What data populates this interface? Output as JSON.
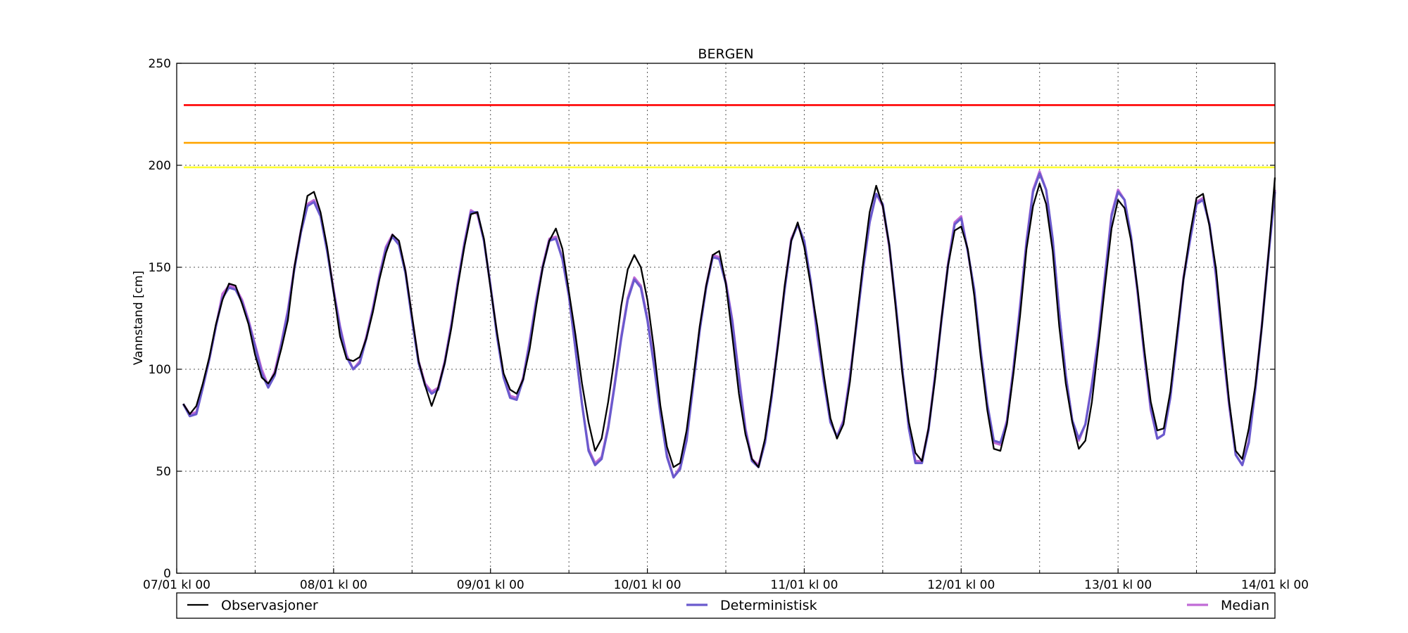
{
  "chart_data": {
    "type": "line",
    "title": "BERGEN",
    "ylabel": "Vannstand [cm]",
    "xlabel": "",
    "ylim": [
      0,
      250
    ],
    "yticks": [
      0,
      50,
      100,
      150,
      200,
      250
    ],
    "xlim": [
      0,
      168
    ],
    "x_unit": "hours since 07/01 kl 00",
    "xticks": [
      {
        "x": 0,
        "label": "07/01 kl 00"
      },
      {
        "x": 24,
        "label": "08/01 kl 00"
      },
      {
        "x": 48,
        "label": "09/01 kl 00"
      },
      {
        "x": 72,
        "label": "10/01 kl 00"
      },
      {
        "x": 96,
        "label": "11/01 kl 00"
      },
      {
        "x": 120,
        "label": "12/01 kl 00"
      },
      {
        "x": 144,
        "label": "13/01 kl 00"
      },
      {
        "x": 168,
        "label": "14/01 kl 00"
      }
    ],
    "minor_grid_x": [
      12,
      36,
      60,
      84,
      108,
      132,
      156
    ],
    "grid": true,
    "legend_placement": "bottom",
    "thresholds": [
      {
        "value": 229.5,
        "color": "#ff0000"
      },
      {
        "value": 211,
        "color": "#ffa500"
      },
      {
        "value": 199,
        "color": "#ffff33"
      }
    ],
    "series": [
      {
        "name": "Median",
        "color": "#c06ad6",
        "x": [
          1,
          2,
          3,
          4,
          5,
          6,
          7,
          8,
          9,
          10,
          11,
          12,
          13,
          14,
          15,
          16,
          17,
          18,
          19,
          20,
          21,
          22,
          23,
          24,
          25,
          26,
          27,
          28,
          29,
          30,
          31,
          32,
          33,
          34,
          35,
          36,
          37,
          38,
          39,
          40,
          41,
          42,
          43,
          44,
          45,
          46,
          47,
          48,
          49,
          50,
          51,
          52,
          53,
          54,
          55,
          56,
          57,
          58,
          59,
          60,
          61,
          62,
          63,
          64,
          65,
          66,
          67,
          68,
          69,
          70,
          71,
          72,
          73,
          74,
          75,
          76,
          77,
          78,
          79,
          80,
          81,
          82,
          83,
          84,
          85,
          86,
          87,
          88,
          89,
          90,
          91,
          92,
          93,
          94,
          95,
          96,
          97,
          98,
          99,
          100,
          101,
          102,
          103,
          104,
          105,
          106,
          107,
          108,
          109,
          110,
          111,
          112,
          113,
          114,
          115,
          116,
          117,
          118,
          119,
          120,
          121,
          122,
          123,
          124,
          125,
          126,
          127,
          128,
          129,
          130,
          131,
          132,
          133,
          134,
          135,
          136,
          137,
          138,
          139,
          140,
          141,
          142,
          143,
          144,
          145,
          146,
          147,
          148,
          149,
          150,
          151,
          152,
          153,
          154,
          155,
          156,
          157,
          158,
          159,
          160,
          161,
          162,
          163,
          164,
          165,
          166,
          167,
          168
        ],
        "values": [
          83,
          78,
          79,
          92,
          105,
          121,
          137,
          141,
          140,
          134,
          124,
          112,
          100,
          92,
          99,
          113,
          129,
          150,
          168,
          181,
          183,
          176,
          159,
          139,
          121,
          107,
          100,
          104,
          116,
          130,
          146,
          160,
          166,
          162,
          148,
          125,
          104,
          93,
          89,
          91,
          104,
          122,
          143,
          162,
          178,
          176,
          163,
          141,
          117,
          97,
          87,
          86,
          96,
          114,
          134,
          151,
          164,
          165,
          154,
          136,
          110,
          83,
          61,
          54,
          57,
          72,
          93,
          116,
          135,
          145,
          141,
          125,
          103,
          79,
          58,
          47,
          52,
          66,
          93,
          120,
          141,
          156,
          155,
          143,
          124,
          97,
          71,
          56,
          53,
          65,
          87,
          114,
          140,
          164,
          171,
          162,
          142,
          116,
          94,
          74,
          67,
          75,
          97,
          123,
          150,
          172,
          186,
          180,
          160,
          131,
          99,
          71,
          55,
          55,
          71,
          97,
          125,
          152,
          172,
          175,
          158,
          138,
          108,
          82,
          64,
          63,
          75,
          101,
          131,
          163,
          188,
          197,
          188,
          163,
          128,
          97,
          75,
          65,
          73,
          93,
          116,
          146,
          176,
          188,
          183,
          164,
          137,
          107,
          80,
          66,
          68,
          87,
          115,
          145,
          164,
          182,
          184,
          171,
          145,
          111,
          82,
          58,
          53,
          65,
          91,
          122,
          156,
          188
        ]
      },
      {
        "name": "Deterministisk",
        "color": "#6a5acd",
        "x": [
          1,
          2,
          3,
          4,
          5,
          6,
          7,
          8,
          9,
          10,
          11,
          12,
          13,
          14,
          15,
          16,
          17,
          18,
          19,
          20,
          21,
          22,
          23,
          24,
          25,
          26,
          27,
          28,
          29,
          30,
          31,
          32,
          33,
          34,
          35,
          36,
          37,
          38,
          39,
          40,
          41,
          42,
          43,
          44,
          45,
          46,
          47,
          48,
          49,
          50,
          51,
          52,
          53,
          54,
          55,
          56,
          57,
          58,
          59,
          60,
          61,
          62,
          63,
          64,
          65,
          66,
          67,
          68,
          69,
          70,
          71,
          72,
          73,
          74,
          75,
          76,
          77,
          78,
          79,
          80,
          81,
          82,
          83,
          84,
          85,
          86,
          87,
          88,
          89,
          90,
          91,
          92,
          93,
          94,
          95,
          96,
          97,
          98,
          99,
          100,
          101,
          102,
          103,
          104,
          105,
          106,
          107,
          108,
          109,
          110,
          111,
          112,
          113,
          114,
          115,
          116,
          117,
          118,
          119,
          120,
          121,
          122,
          123,
          124,
          125,
          126,
          127,
          128,
          129,
          130,
          131,
          132,
          133,
          134,
          135,
          136,
          137,
          138,
          139,
          140,
          141,
          142,
          143,
          144,
          145,
          146,
          147,
          148,
          149,
          150,
          151,
          152,
          153,
          154,
          155,
          156,
          157,
          158,
          159,
          160,
          161,
          162,
          163,
          164,
          165,
          166,
          167,
          168
        ],
        "values": [
          83,
          77,
          78,
          91,
          105,
          121,
          135,
          140,
          139,
          133,
          123,
          111,
          98,
          91,
          97,
          112,
          128,
          149,
          167,
          180,
          182,
          175,
          158,
          138,
          120,
          106,
          100,
          103,
          115,
          129,
          145,
          159,
          165,
          161,
          147,
          124,
          103,
          92,
          88,
          90,
          103,
          121,
          142,
          161,
          177,
          177,
          163,
          141,
          116,
          96,
          86,
          85,
          95,
          113,
          133,
          150,
          163,
          164,
          154,
          136,
          110,
          83,
          60,
          53,
          56,
          71,
          92,
          115,
          134,
          144,
          140,
          124,
          102,
          78,
          57,
          47,
          51,
          65,
          92,
          119,
          140,
          155,
          154,
          142,
          123,
          96,
          70,
          55,
          52,
          64,
          86,
          113,
          139,
          163,
          171,
          163,
          143,
          117,
          94,
          74,
          67,
          74,
          96,
          122,
          149,
          172,
          186,
          181,
          161,
          132,
          100,
          71,
          54,
          54,
          70,
          96,
          124,
          151,
          171,
          174,
          158,
          139,
          109,
          83,
          65,
          64,
          74,
          100,
          130,
          162,
          187,
          196,
          188,
          164,
          128,
          97,
          75,
          66,
          73,
          92,
          115,
          145,
          175,
          187,
          183,
          165,
          138,
          108,
          81,
          66,
          68,
          86,
          114,
          144,
          163,
          181,
          183,
          171,
          146,
          112,
          83,
          58,
          53,
          64,
          90,
          121,
          155,
          187
        ]
      },
      {
        "name": "Observasjoner",
        "color": "#000000",
        "x": [
          1,
          2,
          3,
          4,
          5,
          6,
          7,
          8,
          9,
          10,
          11,
          12,
          13,
          14,
          15,
          16,
          17,
          18,
          19,
          20,
          21,
          22,
          23,
          24,
          25,
          26,
          27,
          28,
          29,
          30,
          31,
          32,
          33,
          34,
          35,
          36,
          37,
          38,
          39,
          40,
          41,
          42,
          43,
          44,
          45,
          46,
          47,
          48,
          49,
          50,
          51,
          52,
          53,
          54,
          55,
          56,
          57,
          58,
          59,
          60,
          61,
          62,
          63,
          64,
          65,
          66,
          67,
          68,
          69,
          70,
          71,
          72,
          73,
          74,
          75,
          76,
          77,
          78,
          79,
          80,
          81,
          82,
          83,
          84,
          85,
          86,
          87,
          88,
          89,
          90,
          91,
          92,
          93,
          94,
          95,
          96,
          97,
          98,
          99,
          100,
          101,
          102,
          103,
          104,
          105,
          106,
          107,
          108,
          109,
          110,
          111,
          112,
          113,
          114,
          115,
          116,
          117,
          118,
          119,
          120,
          121,
          122,
          123,
          124,
          125,
          126,
          127,
          128,
          129,
          130,
          131,
          132,
          133,
          134,
          135,
          136,
          137,
          138,
          139,
          140,
          141,
          142,
          143,
          144,
          145,
          146,
          147,
          148,
          149,
          150,
          151,
          152,
          153,
          154,
          155,
          156,
          157,
          158,
          159,
          160,
          161,
          162,
          163,
          164,
          165,
          166,
          167,
          168
        ],
        "values": [
          83,
          78,
          82,
          93,
          106,
          122,
          134,
          142,
          141,
          132,
          122,
          107,
          96,
          93,
          98,
          110,
          124,
          150,
          168,
          185,
          187,
          177,
          160,
          138,
          116,
          105,
          104,
          106,
          115,
          128,
          144,
          157,
          166,
          163,
          148,
          126,
          104,
          92,
          82,
          91,
          103,
          120,
          141,
          160,
          176,
          177,
          164,
          140,
          118,
          98,
          90,
          88,
          95,
          110,
          131,
          150,
          163,
          169,
          159,
          138,
          117,
          93,
          74,
          60,
          66,
          84,
          106,
          131,
          149,
          156,
          150,
          134,
          110,
          82,
          62,
          52,
          54,
          70,
          95,
          121,
          141,
          156,
          158,
          142,
          116,
          88,
          68,
          56,
          52,
          66,
          88,
          112,
          141,
          163,
          172,
          160,
          141,
          121,
          97,
          76,
          66,
          73,
          94,
          124,
          152,
          177,
          190,
          180,
          161,
          130,
          98,
          74,
          59,
          55,
          71,
          95,
          125,
          151,
          168,
          170,
          159,
          136,
          106,
          80,
          61,
          60,
          73,
          98,
          126,
          159,
          180,
          191,
          181,
          158,
          121,
          93,
          74,
          61,
          65,
          84,
          112,
          141,
          169,
          183,
          179,
          163,
          139,
          110,
          84,
          70,
          71,
          89,
          117,
          144,
          166,
          184,
          186,
          170,
          149,
          116,
          84,
          60,
          56,
          71,
          92,
          121,
          156,
          194
        ]
      }
    ],
    "legend": [
      {
        "label": "Observasjoner",
        "color": "#000000"
      },
      {
        "label": "Deterministisk",
        "color": "#6a5acd"
      },
      {
        "label": "Median",
        "color": "#c06ad6"
      }
    ]
  }
}
